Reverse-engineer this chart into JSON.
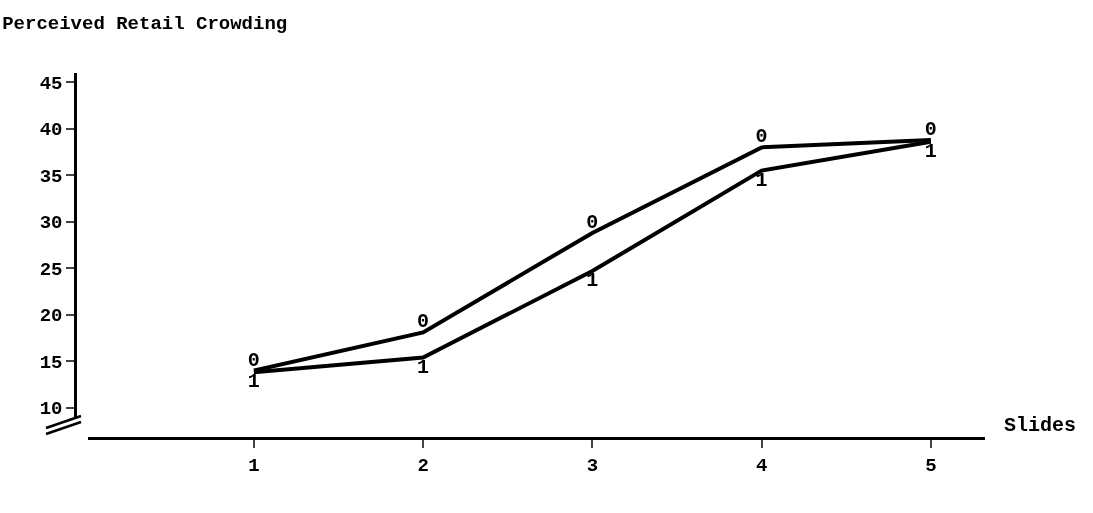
{
  "chart_data": {
    "type": "line",
    "title": "Perceived Retail Crowding",
    "xlabel": "Slides",
    "categories": [
      "1",
      "2",
      "3",
      "4",
      "5"
    ],
    "series": [
      {
        "name": "0",
        "color": "#000000",
        "values": [
          14,
          18.1,
          28.8,
          38,
          38.8
        ]
      },
      {
        "name": "1",
        "color": "#000000",
        "values": [
          13.8,
          15.4,
          24.7,
          35.5,
          38.6
        ]
      }
    ],
    "ylim": [
      9,
      46
    ],
    "yticks": [
      10,
      15,
      20,
      25,
      30,
      35,
      40,
      45
    ],
    "grid": false,
    "marker": "none",
    "line_style": "solid"
  }
}
